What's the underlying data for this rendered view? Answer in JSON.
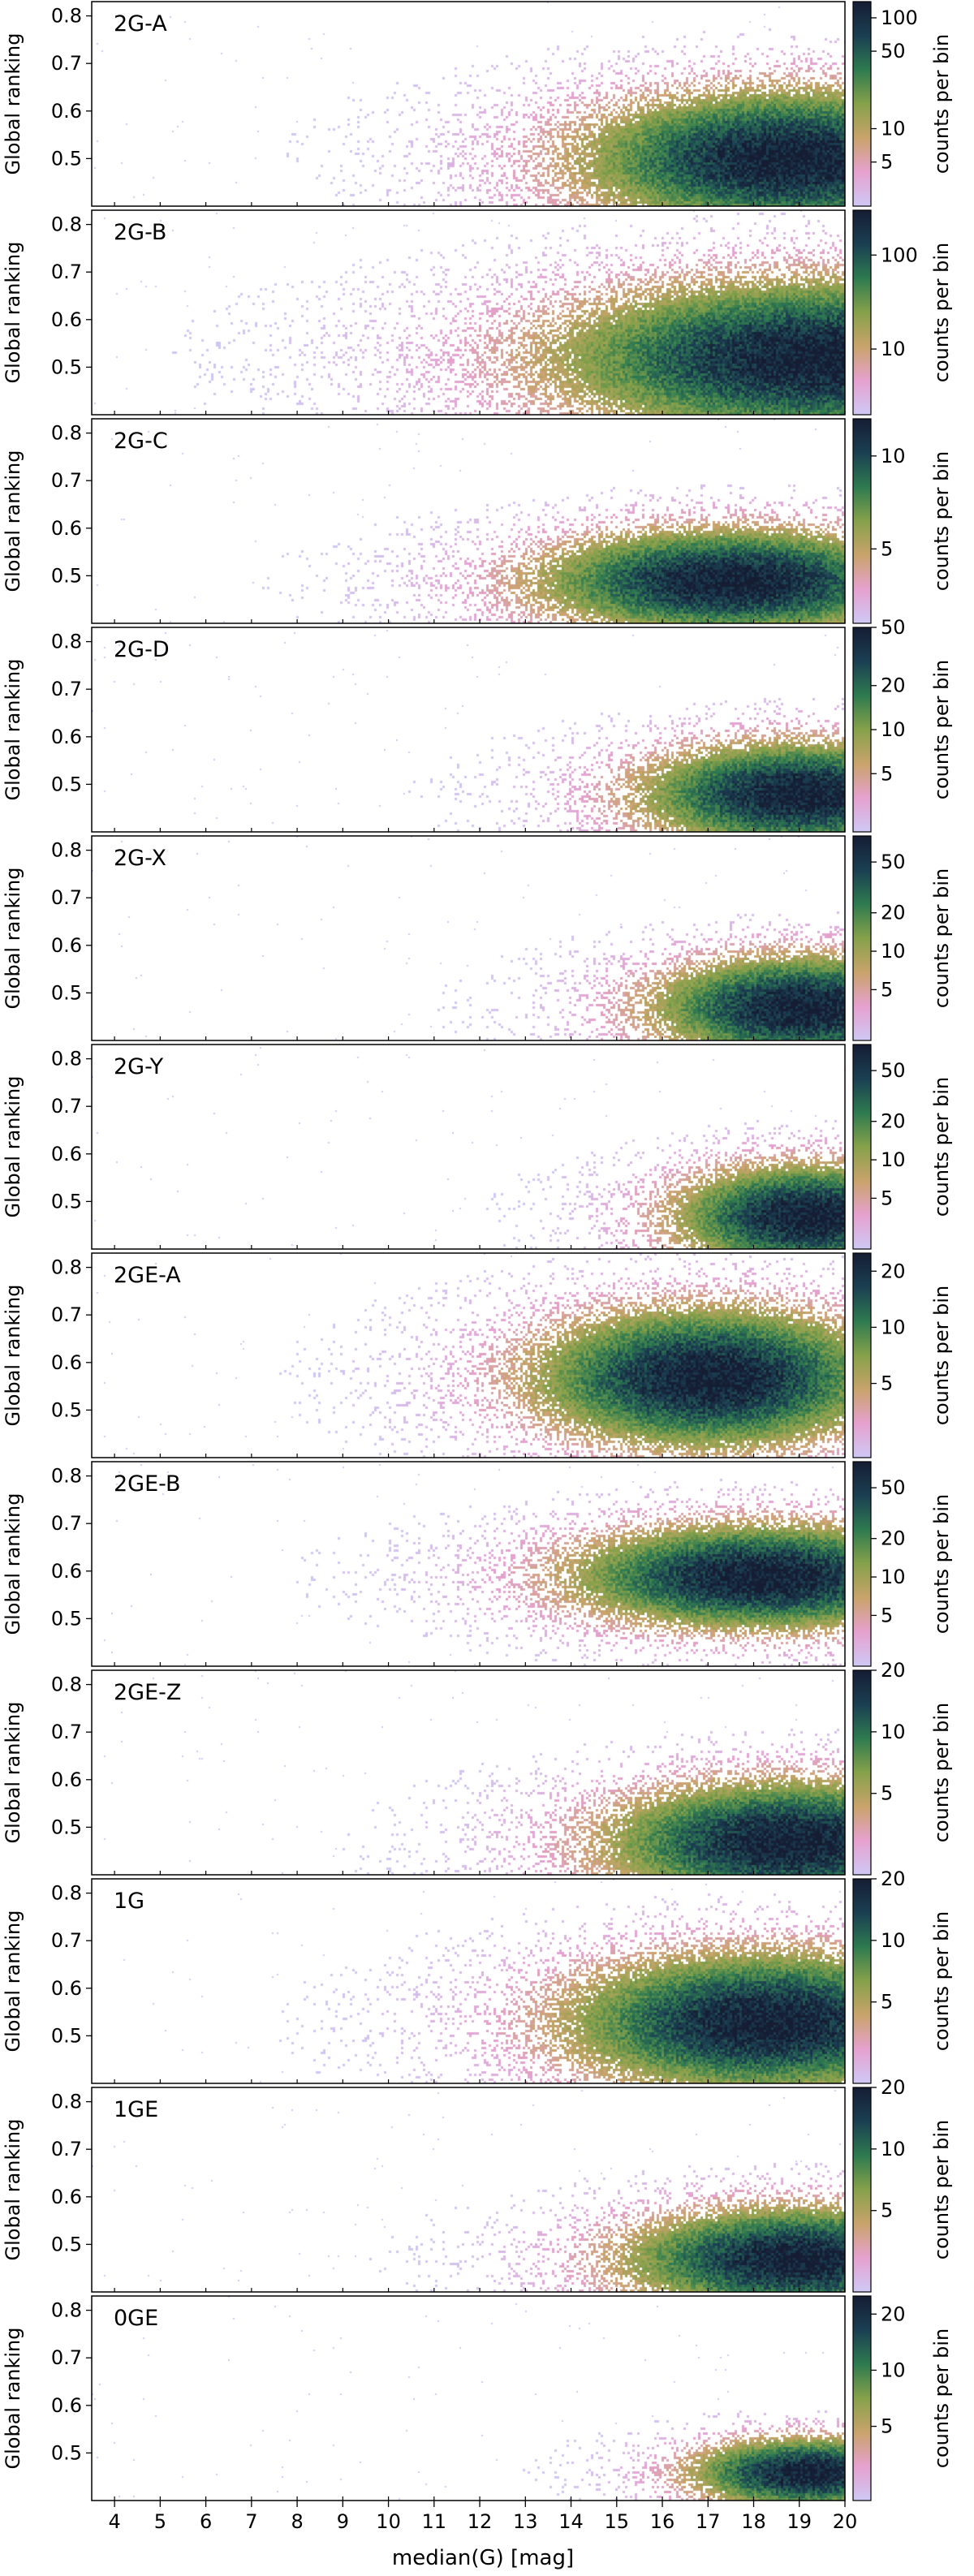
{
  "figure": {
    "xlabel": "median(G)  [mag]",
    "x_ticks": [
      "4",
      "5",
      "6",
      "7",
      "8",
      "9",
      "10",
      "11",
      "12",
      "13",
      "14",
      "15",
      "16",
      "17",
      "18",
      "19",
      "20"
    ]
  },
  "colormap": [
    "#cfc8f5",
    "#e6a1cf",
    "#c9a36b",
    "#86a14a",
    "#2e7a50",
    "#1b3f52",
    "#151d33"
  ],
  "chart_data": [
    {
      "type": "heatmap",
      "title": "2G-A",
      "xlim": [
        3.5,
        20
      ],
      "ylim": [
        0.4,
        0.83
      ],
      "ylabel": "Global ranking",
      "y_ticks": [
        "0.5",
        "0.6",
        "0.7",
        "0.8"
      ],
      "colorbar_label": "counts per bin",
      "colorbar_ticks": [
        "5",
        "10",
        "50",
        "100"
      ],
      "colorbar_range": [
        2,
        140
      ],
      "colorbar_scale": "log",
      "density_center": [
        18.8,
        0.5
      ],
      "density_spread": [
        2.5,
        0.08
      ],
      "peak_count": 120
    },
    {
      "type": "heatmap",
      "title": "2G-B",
      "xlim": [
        3.5,
        20
      ],
      "ylim": [
        0.4,
        0.83
      ],
      "ylabel": "Global ranking",
      "y_ticks": [
        "0.5",
        "0.6",
        "0.7",
        "0.8"
      ],
      "colorbar_label": "counts per bin",
      "colorbar_ticks": [
        "10",
        "100"
      ],
      "colorbar_range": [
        2,
        300
      ],
      "colorbar_scale": "log",
      "density_center": [
        19.5,
        0.52
      ],
      "density_spread": [
        3.2,
        0.09
      ],
      "peak_count": 280
    },
    {
      "type": "heatmap",
      "title": "2G-C",
      "xlim": [
        3.5,
        20
      ],
      "ylim": [
        0.4,
        0.83
      ],
      "ylabel": "Global ranking",
      "y_ticks": [
        "0.5",
        "0.6",
        "0.7",
        "0.8"
      ],
      "colorbar_label": "counts per bin",
      "colorbar_ticks": [
        "5",
        "10"
      ],
      "colorbar_range": [
        1,
        12
      ],
      "colorbar_scale": "linear",
      "density_center": [
        17.5,
        0.49
      ],
      "density_spread": [
        2.3,
        0.06
      ],
      "peak_count": 11
    },
    {
      "type": "heatmap",
      "title": "2G-D",
      "xlim": [
        3.5,
        20
      ],
      "ylim": [
        0.4,
        0.83
      ],
      "ylabel": "Global ranking",
      "y_ticks": [
        "0.5",
        "0.6",
        "0.7",
        "0.8"
      ],
      "colorbar_label": "counts per bin",
      "colorbar_ticks": [
        "5",
        "10",
        "20",
        "50"
      ],
      "colorbar_range": [
        2,
        50
      ],
      "colorbar_scale": "log",
      "density_center": [
        19.0,
        0.48
      ],
      "density_spread": [
        1.9,
        0.06
      ],
      "peak_count": 45
    },
    {
      "type": "heatmap",
      "title": "2G-X",
      "xlim": [
        3.5,
        20
      ],
      "ylim": [
        0.4,
        0.83
      ],
      "ylabel": "Global ranking",
      "y_ticks": [
        "0.5",
        "0.6",
        "0.7",
        "0.8"
      ],
      "colorbar_label": "counts per bin",
      "colorbar_ticks": [
        "5",
        "10",
        "20",
        "50"
      ],
      "colorbar_range": [
        2,
        80
      ],
      "colorbar_scale": "log",
      "density_center": [
        19.1,
        0.47
      ],
      "density_spread": [
        1.8,
        0.06
      ],
      "peak_count": 70
    },
    {
      "type": "heatmap",
      "title": "2G-Y",
      "xlim": [
        3.5,
        20
      ],
      "ylim": [
        0.4,
        0.83
      ],
      "ylabel": "Global ranking",
      "y_ticks": [
        "0.5",
        "0.6",
        "0.7",
        "0.8"
      ],
      "colorbar_label": "counts per bin",
      "colorbar_ticks": [
        "5",
        "10",
        "20",
        "50"
      ],
      "colorbar_range": [
        2,
        80
      ],
      "colorbar_scale": "log",
      "density_center": [
        19.2,
        0.47
      ],
      "density_spread": [
        1.6,
        0.06
      ],
      "peak_count": 70
    },
    {
      "type": "heatmap",
      "title": "2GE-A",
      "xlim": [
        3.5,
        20
      ],
      "ylim": [
        0.4,
        0.83
      ],
      "ylabel": "Global ranking",
      "y_ticks": [
        "0.5",
        "0.6",
        "0.7",
        "0.8"
      ],
      "colorbar_label": "counts per bin",
      "colorbar_ticks": [
        "5",
        "10",
        "20"
      ],
      "colorbar_range": [
        2,
        25
      ],
      "colorbar_scale": "log",
      "density_center": [
        17.0,
        0.57
      ],
      "density_spread": [
        2.1,
        0.08
      ],
      "peak_count": 22
    },
    {
      "type": "heatmap",
      "title": "2GE-B",
      "xlim": [
        3.5,
        20
      ],
      "ylim": [
        0.4,
        0.83
      ],
      "ylabel": "Global ranking",
      "y_ticks": [
        "0.5",
        "0.6",
        "0.7",
        "0.8"
      ],
      "colorbar_label": "counts per bin",
      "colorbar_ticks": [
        "5",
        "10",
        "20",
        "50"
      ],
      "colorbar_range": [
        2,
        80
      ],
      "colorbar_scale": "log",
      "density_center": [
        18.2,
        0.59
      ],
      "density_spread": [
        2.3,
        0.06
      ],
      "peak_count": 70
    },
    {
      "type": "heatmap",
      "title": "2GE-Z",
      "xlim": [
        3.5,
        20
      ],
      "ylim": [
        0.4,
        0.83
      ],
      "ylabel": "Global ranking",
      "y_ticks": [
        "0.5",
        "0.6",
        "0.7",
        "0.8"
      ],
      "colorbar_label": "counts per bin",
      "colorbar_ticks": [
        "5",
        "10",
        "20"
      ],
      "colorbar_range": [
        2,
        20
      ],
      "colorbar_scale": "log",
      "density_center": [
        18.8,
        0.47
      ],
      "density_spread": [
        2.2,
        0.07
      ],
      "peak_count": 18
    },
    {
      "type": "heatmap",
      "title": "1G",
      "xlim": [
        3.5,
        20
      ],
      "ylim": [
        0.4,
        0.83
      ],
      "ylabel": "Global ranking",
      "y_ticks": [
        "0.5",
        "0.6",
        "0.7",
        "0.8"
      ],
      "colorbar_label": "counts per bin",
      "colorbar_ticks": [
        "5",
        "10",
        "20"
      ],
      "colorbar_range": [
        2,
        20
      ],
      "colorbar_scale": "log",
      "density_center": [
        18.3,
        0.53
      ],
      "density_spread": [
        2.4,
        0.08
      ],
      "peak_count": 12
    },
    {
      "type": "heatmap",
      "title": "1GE",
      "xlim": [
        3.5,
        20
      ],
      "ylim": [
        0.4,
        0.83
      ],
      "ylabel": "Global ranking",
      "y_ticks": [
        "0.5",
        "0.6",
        "0.7",
        "0.8"
      ],
      "colorbar_label": "counts per bin",
      "colorbar_ticks": [
        "5",
        "10",
        "20"
      ],
      "colorbar_range": [
        2,
        20
      ],
      "colorbar_scale": "log",
      "density_center": [
        19.0,
        0.47
      ],
      "density_spread": [
        2.1,
        0.06
      ],
      "peak_count": 18
    },
    {
      "type": "heatmap",
      "title": "0GE",
      "xlim": [
        3.5,
        20
      ],
      "ylim": [
        0.4,
        0.83
      ],
      "ylabel": "Global ranking",
      "y_ticks": [
        "0.5",
        "0.6",
        "0.7",
        "0.8"
      ],
      "colorbar_label": "counts per bin",
      "colorbar_ticks": [
        "5",
        "10",
        "20"
      ],
      "colorbar_range": [
        2,
        25
      ],
      "colorbar_scale": "log",
      "density_center": [
        19.2,
        0.46
      ],
      "density_spread": [
        1.4,
        0.04
      ],
      "peak_count": 22
    }
  ]
}
